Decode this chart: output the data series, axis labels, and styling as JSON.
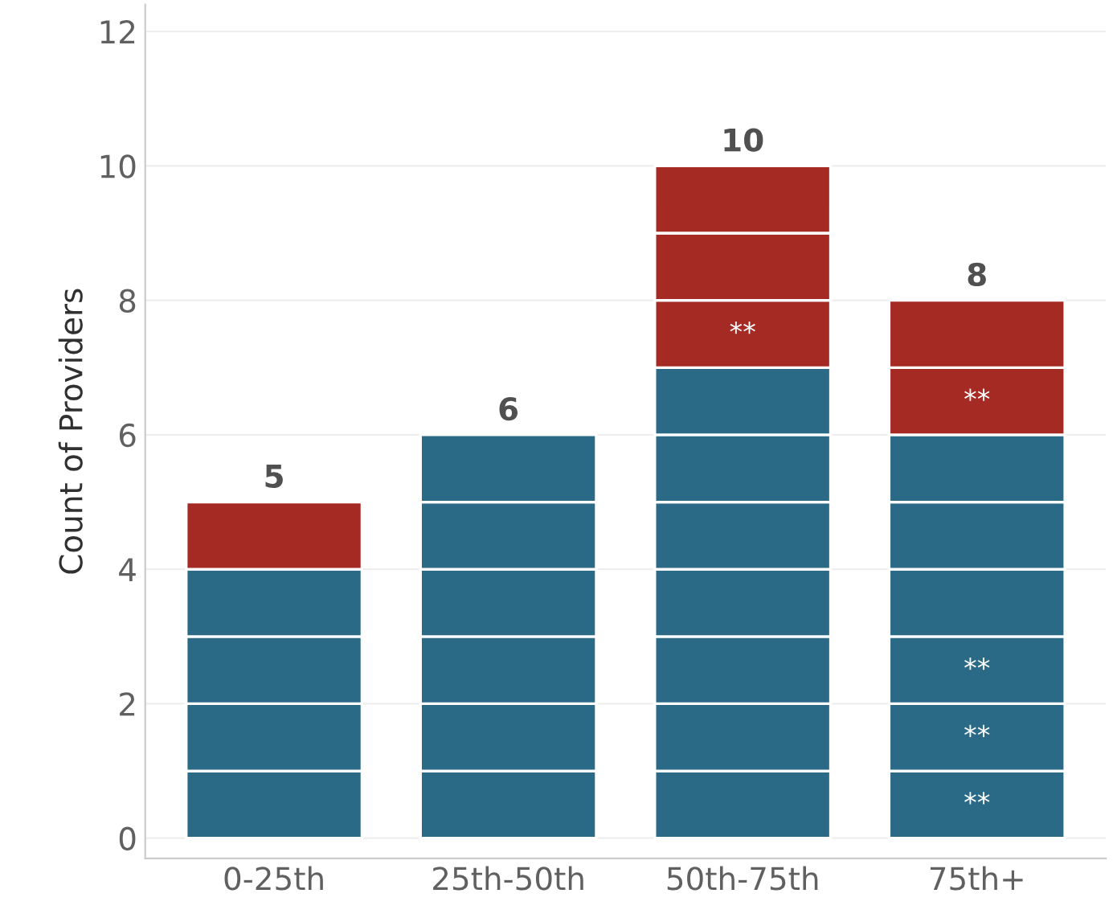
{
  "chart_data": {
    "type": "bar",
    "stacked": true,
    "ylabel": "Count of Providers",
    "categories": [
      "0-25th",
      "25th-50th",
      "50th-75th",
      "75th+"
    ],
    "series": [
      {
        "colors": [
          "#2b6a87",
          "#2b6a87",
          "#2b6a87",
          "#2b6a87"
        ],
        "values": [
          1,
          1,
          1,
          1
        ],
        "value_labels": [
          null,
          null,
          null,
          "**"
        ]
      },
      {
        "colors": [
          "#2b6a87",
          "#2b6a87",
          "#2b6a87",
          "#2b6a87"
        ],
        "values": [
          1,
          1,
          1,
          1
        ],
        "value_labels": [
          null,
          null,
          null,
          "**"
        ]
      },
      {
        "colors": [
          "#2b6a87",
          "#2b6a87",
          "#2b6a87",
          "#2b6a87"
        ],
        "values": [
          1,
          1,
          1,
          1
        ],
        "value_labels": [
          null,
          null,
          null,
          "**"
        ]
      },
      {
        "colors": [
          "#2b6a87",
          "#2b6a87",
          "#2b6a87",
          "#2b6a87"
        ],
        "values": [
          1,
          1,
          1,
          1
        ]
      },
      {
        "colors": [
          "#a52a24",
          "#2b6a87",
          "#2b6a87",
          "#2b6a87"
        ],
        "values": [
          1,
          1,
          1,
          1
        ]
      },
      {
        "colors": [
          null,
          "#2b6a87",
          "#2b6a87",
          "#2b6a87"
        ],
        "values": [
          null,
          1,
          1,
          1
        ]
      },
      {
        "colors": [
          null,
          null,
          "#2b6a87",
          "#a52a24"
        ],
        "values": [
          null,
          null,
          1,
          1
        ],
        "value_labels": [
          null,
          null,
          null,
          "**"
        ]
      },
      {
        "colors": [
          null,
          null,
          "#a52a24",
          "#a52a24"
        ],
        "values": [
          null,
          null,
          1,
          1
        ],
        "value_labels": [
          null,
          null,
          "**",
          null
        ]
      },
      {
        "colors": [
          null,
          null,
          "#a52a24",
          null
        ],
        "values": [
          null,
          null,
          1,
          null
        ]
      },
      {
        "colors": [
          null,
          null,
          "#a52a24",
          null
        ],
        "values": [
          null,
          null,
          1,
          null
        ]
      }
    ],
    "totals": [
      "5",
      "6",
      "10",
      "8"
    ],
    "ylim": [
      -0.3,
      12.4
    ],
    "yticks": [
      0,
      2,
      4,
      6,
      8,
      10,
      12
    ],
    "grid": "y"
  }
}
